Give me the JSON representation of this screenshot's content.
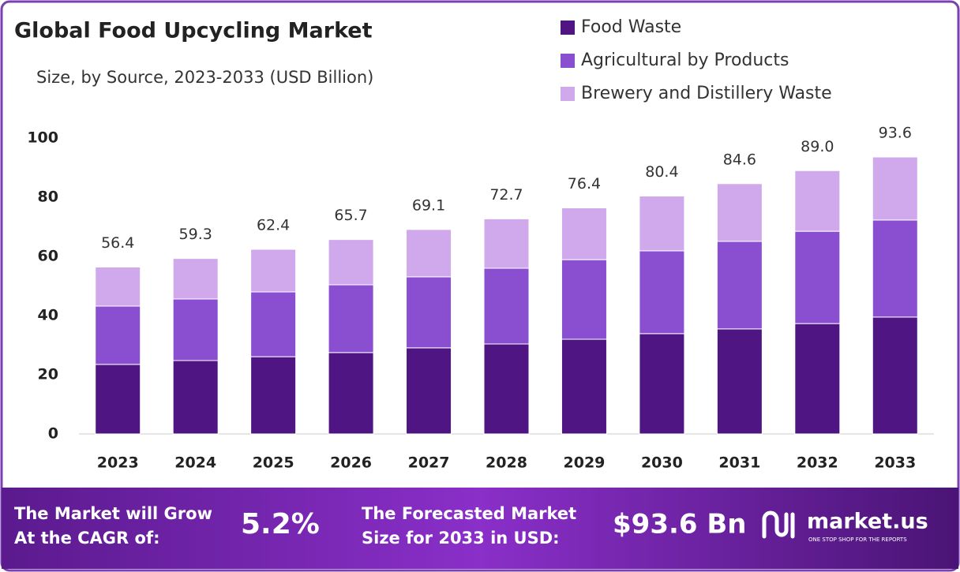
{
  "chart_data": {
    "type": "stacked-bar",
    "title": "Global Food Upcycling Market",
    "subtitle": "Size, by Source, 2023-2033 (USD Billion)",
    "categories": [
      "2023",
      "2024",
      "2025",
      "2026",
      "2027",
      "2028",
      "2029",
      "2030",
      "2031",
      "2032",
      "2033"
    ],
    "series": [
      {
        "name": "Food Waste",
        "color": "#4f1582",
        "values": [
          23.5,
          24.8,
          26.1,
          27.5,
          29.1,
          30.4,
          32.0,
          33.9,
          35.5,
          37.3,
          39.5
        ]
      },
      {
        "name": "Agricultural by Products",
        "color": "#8a4fd0",
        "values": [
          19.7,
          20.8,
          21.9,
          22.9,
          24.0,
          25.6,
          26.9,
          28.0,
          29.6,
          31.2,
          32.8
        ]
      },
      {
        "name": "Brewery and Distillery Waste",
        "color": "#d0a8ec",
        "values": [
          13.2,
          13.7,
          14.4,
          15.3,
          16.0,
          16.7,
          17.5,
          18.5,
          19.5,
          20.5,
          21.3
        ]
      }
    ],
    "total_labels": [
      "56.4",
      "59.3",
      "62.4",
      "65.7",
      "69.1",
      "72.7",
      "76.4",
      "80.4",
      "84.6",
      "89.0",
      "93.6"
    ],
    "ylim": [
      0,
      100
    ],
    "yticks": [
      0,
      20,
      40,
      60,
      80,
      100
    ],
    "grid": false,
    "legend": "top-right"
  },
  "footer": {
    "cagr_text": [
      "The Market will Grow",
      "At the CAGR of:"
    ],
    "cagr": "5.2%",
    "forecast_text": [
      "The Forecasted Market",
      "Size for 2033 in USD:"
    ],
    "forecast": "$93.6 Bn",
    "brand": "market.us",
    "tagline": "ONE STOP SHOP FOR THE REPORTS"
  }
}
